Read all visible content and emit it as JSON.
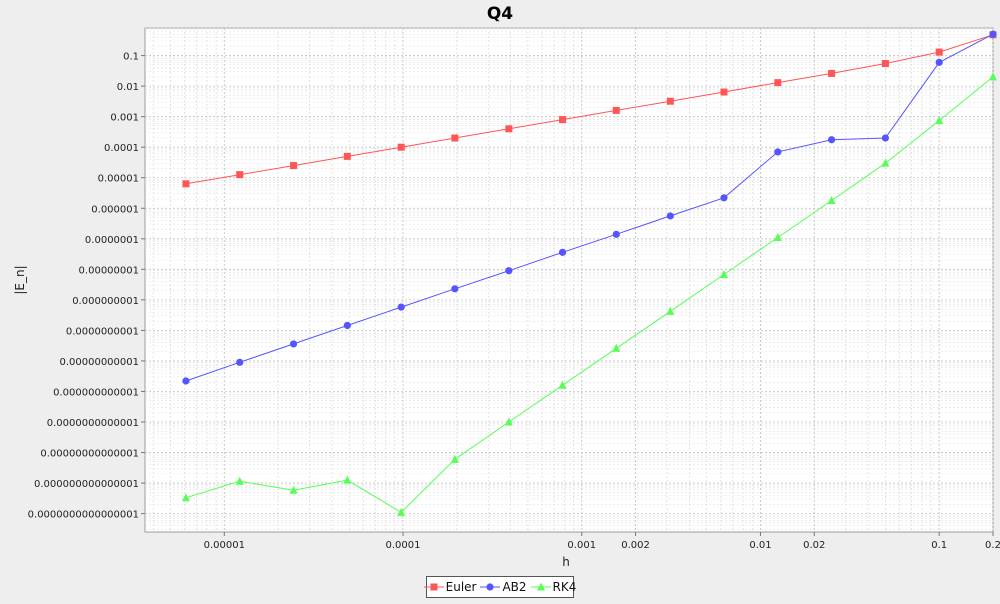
{
  "chart_data": {
    "type": "line",
    "title": "Q4",
    "xlabel": "h",
    "ylabel": "|E_n|",
    "x_scale": "log",
    "y_scale": "log",
    "grid": true,
    "legend_position": "bottom",
    "x_ticks": [
      {
        "value": 1e-05,
        "label": "0.00001"
      },
      {
        "value": 0.0001,
        "label": "0.0001"
      },
      {
        "value": 0.001,
        "label": "0.001"
      },
      {
        "value": 0.002,
        "label": "0.002"
      },
      {
        "value": 0.01,
        "label": "0.01"
      },
      {
        "value": 0.02,
        "label": "0.02"
      },
      {
        "value": 0.1,
        "label": "0.1"
      },
      {
        "value": 0.2,
        "label": "0.2"
      }
    ],
    "y_ticks": [
      {
        "value": 1e-16,
        "label": "0.0000000000000001"
      },
      {
        "value": 1e-15,
        "label": "0.000000000000001"
      },
      {
        "value": 1e-14,
        "label": "0.00000000000001"
      },
      {
        "value": 1e-13,
        "label": "0.0000000000001"
      },
      {
        "value": 1e-12,
        "label": "0.000000000001"
      },
      {
        "value": 1e-11,
        "label": "0.00000000001"
      },
      {
        "value": 1e-10,
        "label": "0.0000000001"
      },
      {
        "value": 1e-09,
        "label": "0.000000001"
      },
      {
        "value": 1e-08,
        "label": "0.00000001"
      },
      {
        "value": 1e-07,
        "label": "0.0000001"
      },
      {
        "value": 1e-06,
        "label": "0.000001"
      },
      {
        "value": 1e-05,
        "label": "0.00001"
      },
      {
        "value": 0.0001,
        "label": "0.0001"
      },
      {
        "value": 0.001,
        "label": "0.001"
      },
      {
        "value": 0.01,
        "label": "0.01"
      },
      {
        "value": 0.1,
        "label": "0.1"
      }
    ],
    "x": [
      6.1e-06,
      1.22e-05,
      2.44e-05,
      4.88e-05,
      9.77e-05,
      0.000195,
      0.000391,
      0.000781,
      0.00156,
      0.00313,
      0.00625,
      0.0125,
      0.025,
      0.05,
      0.1,
      0.2
    ],
    "series": [
      {
        "name": "Euler",
        "color": "#ff5555",
        "marker": "square",
        "values": [
          6.3e-06,
          1.26e-05,
          2.5e-05,
          5e-05,
          0.0001,
          0.0002,
          0.0004,
          0.0008,
          0.0016,
          0.0032,
          0.0064,
          0.013,
          0.026,
          0.055,
          0.13,
          0.48
        ]
      },
      {
        "name": "AB2",
        "color": "#5555ff",
        "marker": "circle",
        "values": [
          2.2e-12,
          9e-12,
          3.6e-11,
          1.45e-10,
          5.8e-10,
          2.3e-09,
          9e-09,
          3.6e-08,
          1.4e-07,
          5.6e-07,
          2.2e-06,
          7e-05,
          0.000175,
          0.0002,
          0.06,
          0.5
        ]
      },
      {
        "name": "RK4",
        "color": "#55ff55",
        "marker": "triangle",
        "values": [
          3.3e-16,
          1.15e-15,
          5.8e-16,
          1.25e-15,
          1.1e-16,
          6e-15,
          1e-13,
          1.6e-12,
          2.6e-11,
          4.2e-10,
          6.8e-09,
          1.1e-07,
          1.8e-06,
          3e-05,
          0.00075,
          0.02
        ]
      }
    ]
  }
}
